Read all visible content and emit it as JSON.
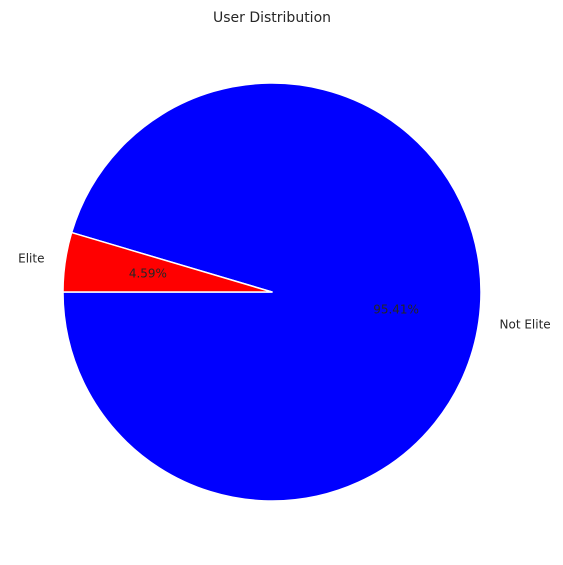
{
  "chart_data": {
    "type": "pie",
    "title": "User Distribution",
    "slices": [
      {
        "label": "Not Elite",
        "value": 95.41,
        "pct_label": "95.41%",
        "color": "#0000ff"
      },
      {
        "label": "Elite",
        "value": 4.59,
        "pct_label": "4.59%",
        "color": "#ff0000"
      }
    ],
    "start_angle_deg": 180,
    "edge_color": "#ffffff",
    "background": "#ffffff"
  }
}
